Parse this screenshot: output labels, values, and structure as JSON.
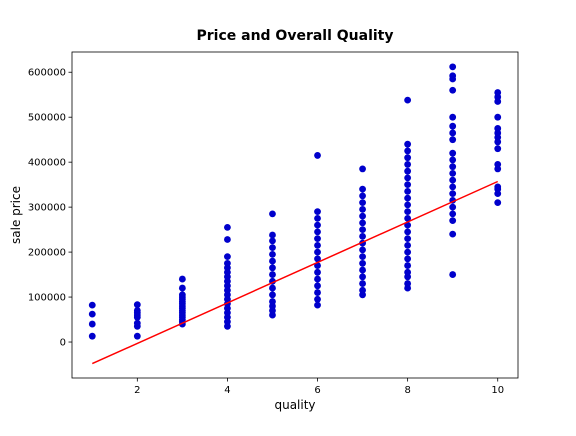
{
  "chart_data": {
    "type": "scatter",
    "title": "Price and Overall Quality",
    "xlabel": "quality",
    "ylabel": "sale price",
    "xlim": [
      0.55,
      10.45
    ],
    "ylim": [
      -80000,
      645000
    ],
    "xticks": [
      2,
      4,
      6,
      8,
      10
    ],
    "yticks": [
      0,
      100000,
      200000,
      300000,
      400000,
      500000,
      600000
    ],
    "xtick_labels": [
      "2",
      "4",
      "6",
      "8",
      "10"
    ],
    "ytick_labels": [
      "0",
      "100000",
      "200000",
      "300000",
      "400000",
      "500000",
      "600000"
    ],
    "grid": false,
    "series": [
      {
        "kind": "scatter",
        "color": "#0000cc",
        "points": [
          [
            1,
            82000
          ],
          [
            1,
            62000
          ],
          [
            1,
            40000
          ],
          [
            1,
            13000
          ],
          [
            2,
            83000
          ],
          [
            2,
            70000
          ],
          [
            2,
            65000
          ],
          [
            2,
            60000
          ],
          [
            2,
            55000
          ],
          [
            2,
            42000
          ],
          [
            2,
            35000
          ],
          [
            2,
            13000
          ],
          [
            3,
            140000
          ],
          [
            3,
            120000
          ],
          [
            3,
            105000
          ],
          [
            3,
            100000
          ],
          [
            3,
            95000
          ],
          [
            3,
            90000
          ],
          [
            3,
            85000
          ],
          [
            3,
            80000
          ],
          [
            3,
            75000
          ],
          [
            3,
            70000
          ],
          [
            3,
            65000
          ],
          [
            3,
            60000
          ],
          [
            3,
            55000
          ],
          [
            3,
            50000
          ],
          [
            3,
            45000
          ],
          [
            3,
            40000
          ],
          [
            4,
            255000
          ],
          [
            4,
            228000
          ],
          [
            4,
            190000
          ],
          [
            4,
            175000
          ],
          [
            4,
            165000
          ],
          [
            4,
            155000
          ],
          [
            4,
            145000
          ],
          [
            4,
            135000
          ],
          [
            4,
            125000
          ],
          [
            4,
            115000
          ],
          [
            4,
            105000
          ],
          [
            4,
            95000
          ],
          [
            4,
            85000
          ],
          [
            4,
            75000
          ],
          [
            4,
            65000
          ],
          [
            4,
            55000
          ],
          [
            4,
            45000
          ],
          [
            4,
            35000
          ],
          [
            5,
            285000
          ],
          [
            5,
            238000
          ],
          [
            5,
            225000
          ],
          [
            5,
            210000
          ],
          [
            5,
            195000
          ],
          [
            5,
            180000
          ],
          [
            5,
            165000
          ],
          [
            5,
            150000
          ],
          [
            5,
            135000
          ],
          [
            5,
            120000
          ],
          [
            5,
            105000
          ],
          [
            5,
            90000
          ],
          [
            5,
            80000
          ],
          [
            5,
            70000
          ],
          [
            5,
            60000
          ],
          [
            6,
            415000
          ],
          [
            6,
            290000
          ],
          [
            6,
            275000
          ],
          [
            6,
            260000
          ],
          [
            6,
            245000
          ],
          [
            6,
            230000
          ],
          [
            6,
            215000
          ],
          [
            6,
            200000
          ],
          [
            6,
            185000
          ],
          [
            6,
            170000
          ],
          [
            6,
            155000
          ],
          [
            6,
            140000
          ],
          [
            6,
            125000
          ],
          [
            6,
            110000
          ],
          [
            6,
            95000
          ],
          [
            6,
            82000
          ],
          [
            7,
            385000
          ],
          [
            7,
            340000
          ],
          [
            7,
            325000
          ],
          [
            7,
            310000
          ],
          [
            7,
            295000
          ],
          [
            7,
            280000
          ],
          [
            7,
            265000
          ],
          [
            7,
            250000
          ],
          [
            7,
            235000
          ],
          [
            7,
            220000
          ],
          [
            7,
            205000
          ],
          [
            7,
            190000
          ],
          [
            7,
            175000
          ],
          [
            7,
            160000
          ],
          [
            7,
            145000
          ],
          [
            7,
            130000
          ],
          [
            7,
            115000
          ],
          [
            7,
            105000
          ],
          [
            8,
            538000
          ],
          [
            8,
            440000
          ],
          [
            8,
            425000
          ],
          [
            8,
            410000
          ],
          [
            8,
            395000
          ],
          [
            8,
            380000
          ],
          [
            8,
            365000
          ],
          [
            8,
            350000
          ],
          [
            8,
            335000
          ],
          [
            8,
            320000
          ],
          [
            8,
            305000
          ],
          [
            8,
            290000
          ],
          [
            8,
            275000
          ],
          [
            8,
            260000
          ],
          [
            8,
            245000
          ],
          [
            8,
            230000
          ],
          [
            8,
            215000
          ],
          [
            8,
            200000
          ],
          [
            8,
            185000
          ],
          [
            8,
            170000
          ],
          [
            8,
            155000
          ],
          [
            8,
            145000
          ],
          [
            8,
            130000
          ],
          [
            8,
            120000
          ],
          [
            9,
            612000
          ],
          [
            9,
            592000
          ],
          [
            9,
            585000
          ],
          [
            9,
            560000
          ],
          [
            9,
            500000
          ],
          [
            9,
            480000
          ],
          [
            9,
            465000
          ],
          [
            9,
            450000
          ],
          [
            9,
            420000
          ],
          [
            9,
            405000
          ],
          [
            9,
            390000
          ],
          [
            9,
            375000
          ],
          [
            9,
            360000
          ],
          [
            9,
            345000
          ],
          [
            9,
            330000
          ],
          [
            9,
            315000
          ],
          [
            9,
            300000
          ],
          [
            9,
            285000
          ],
          [
            9,
            270000
          ],
          [
            9,
            240000
          ],
          [
            9,
            150000
          ],
          [
            10,
            555000
          ],
          [
            10,
            545000
          ],
          [
            10,
            535000
          ],
          [
            10,
            500000
          ],
          [
            10,
            475000
          ],
          [
            10,
            465000
          ],
          [
            10,
            455000
          ],
          [
            10,
            445000
          ],
          [
            10,
            430000
          ],
          [
            10,
            395000
          ],
          [
            10,
            385000
          ],
          [
            10,
            345000
          ],
          [
            10,
            340000
          ],
          [
            10,
            330000
          ],
          [
            10,
            310000
          ]
        ]
      },
      {
        "kind": "line",
        "color": "#ff0000",
        "points": [
          [
            1,
            -48000
          ],
          [
            10,
            357000
          ]
        ]
      }
    ]
  }
}
